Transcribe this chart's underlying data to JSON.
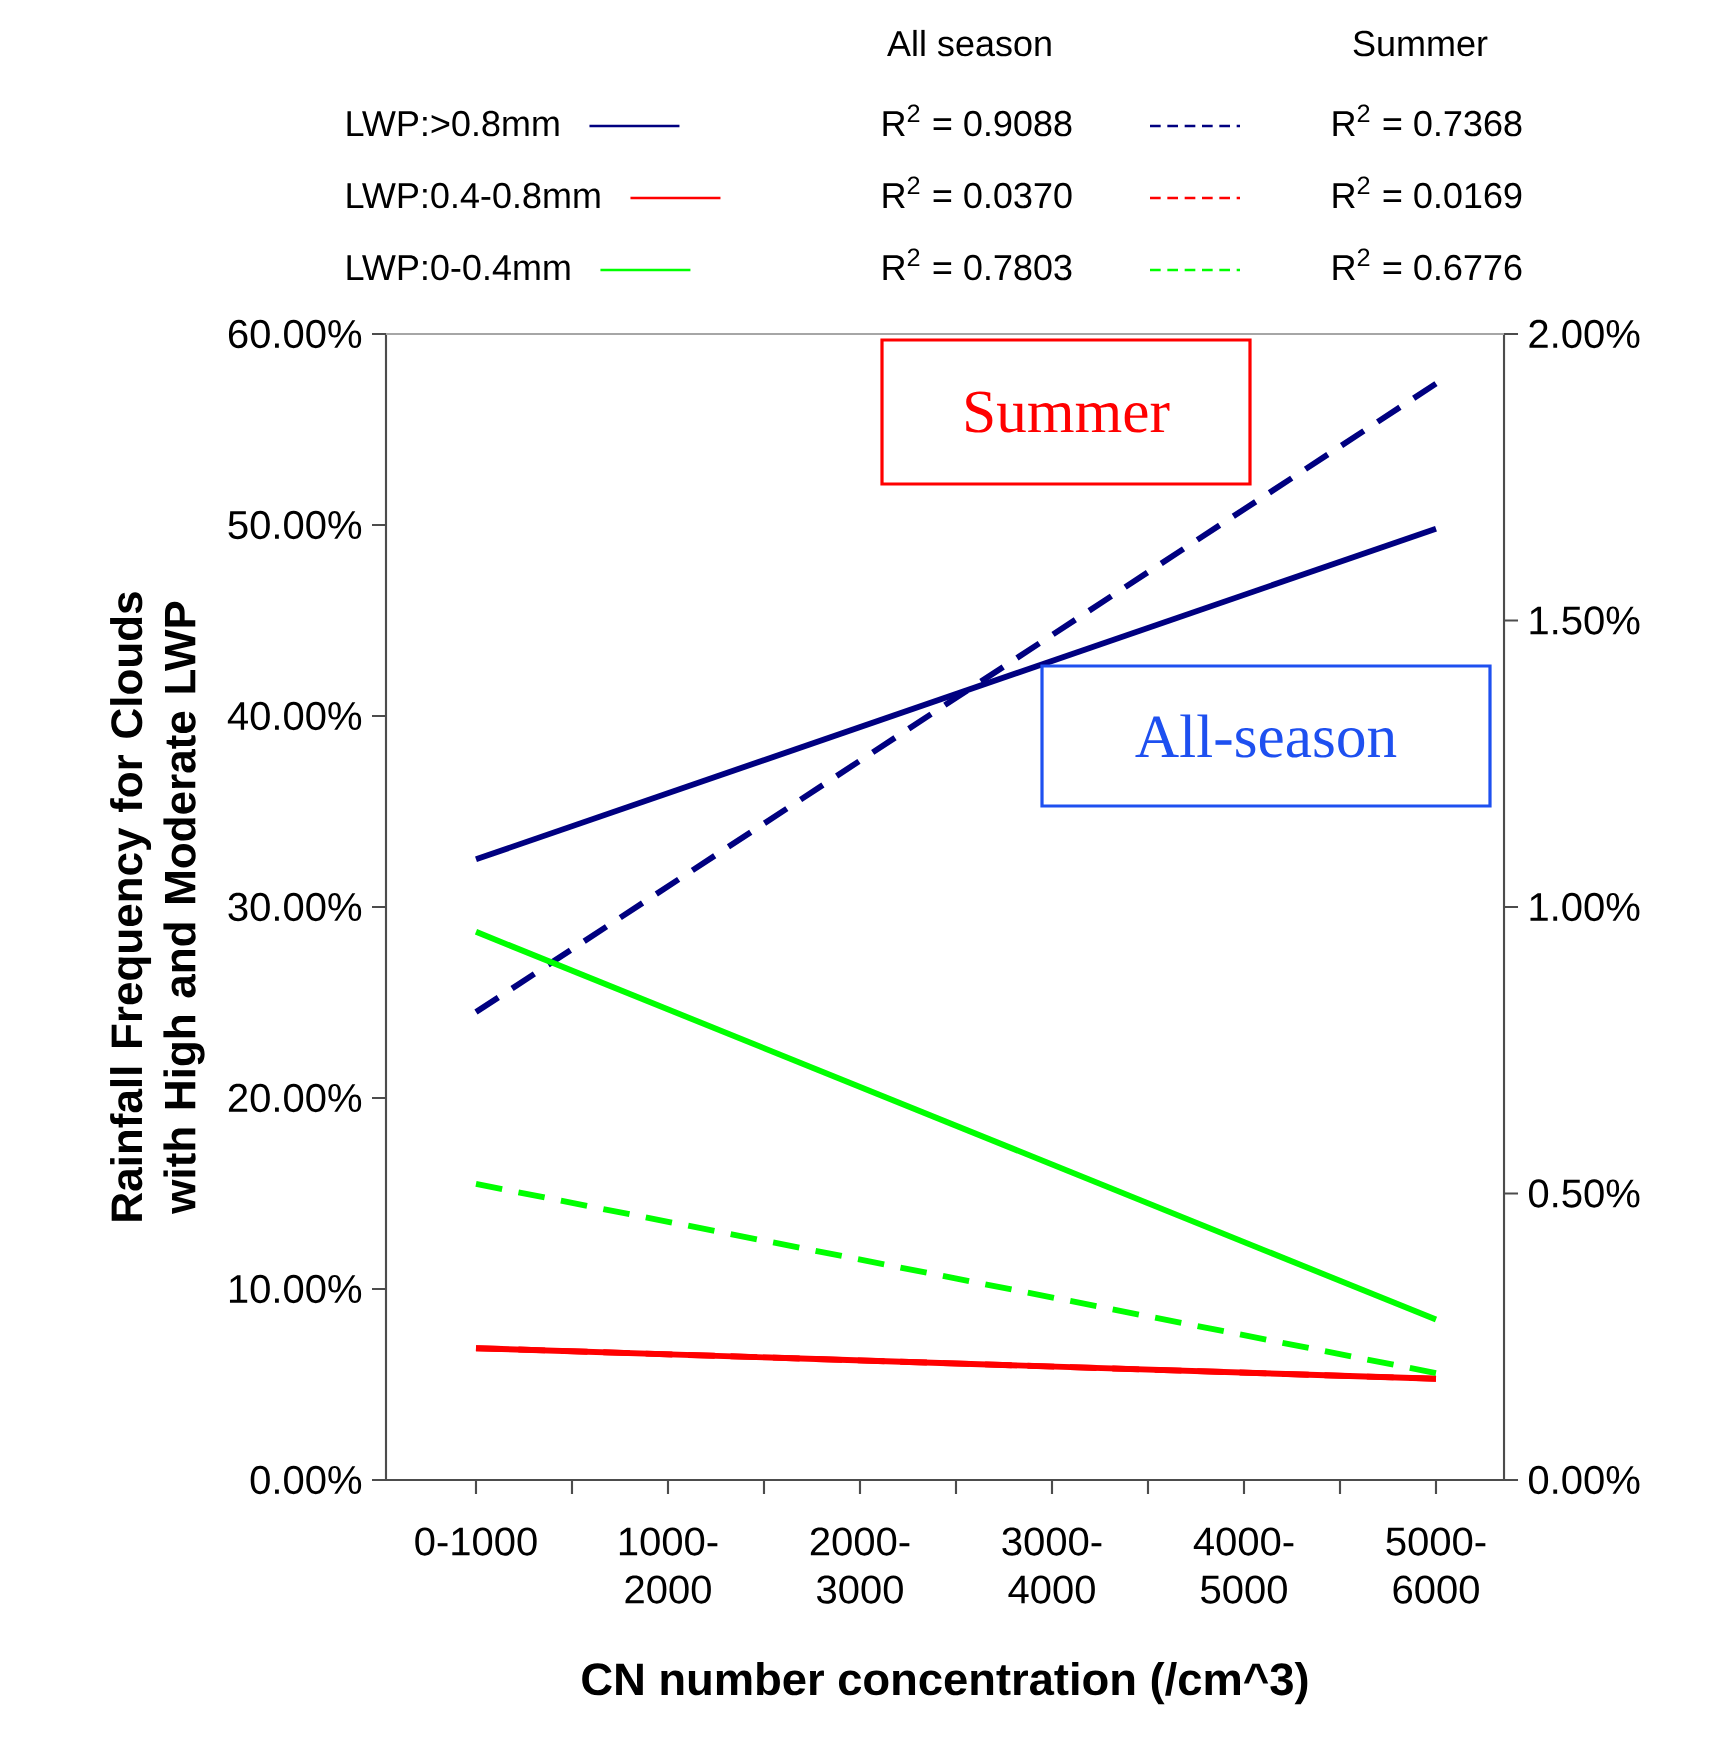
{
  "chart_data": {
    "type": "line",
    "ylabel": "Rainfall Frequency for Clouds with High and Moderate LWP",
    "xlabel": "CN number concentration (/cm^3)",
    "categories": [
      "0-1000",
      "1000-2000",
      "2000-3000",
      "3000-4000",
      "4000-5000",
      "5000-6000"
    ],
    "series": [
      {
        "name": "LWP:>0.8mm",
        "color": "#000080",
        "line_style": "solid",
        "values": [
          32.5,
          null,
          null,
          null,
          null,
          49.8
        ]
      },
      {
        "color": "#000080",
        "line_style": "dashed",
        "values": [
          24.5,
          null,
          null,
          null,
          null,
          57.4
        ]
      },
      {
        "name": "LWP:0.4-0.8mm",
        "color": "#ff0000",
        "line_style": "solid",
        "values": [
          6.9,
          null,
          null,
          null,
          null,
          5.3
        ]
      },
      {
        "color": "#ff0000",
        "line_style": "dashed",
        "values": [
          6.9,
          null,
          null,
          null,
          null,
          5.3
        ]
      },
      {
        "name": "LWP:0-0.4mm",
        "color": "#00ff00",
        "line_style": "solid",
        "values": [
          28.7,
          null,
          null,
          null,
          null,
          8.4
        ]
      },
      {
        "color": "#00ff00",
        "line_style": "dashed",
        "values": [
          15.5,
          null,
          null,
          null,
          null,
          5.6
        ]
      }
    ],
    "ylim": [
      0,
      60
    ],
    "yticks": [
      {
        "value": 0,
        "label": "0.00%"
      },
      {
        "value": 10,
        "label": "10.00%"
      },
      {
        "value": 20,
        "label": "20.00%"
      },
      {
        "value": 30,
        "label": "30.00%"
      },
      {
        "value": 40,
        "label": "40.00%"
      },
      {
        "value": 50,
        "label": "50.00%"
      },
      {
        "value": 60,
        "label": "60.00%"
      }
    ],
    "y2lim": [
      0,
      2
    ],
    "y2ticks": [
      {
        "value": 0,
        "label": "0.00%"
      },
      {
        "value": 0.5,
        "label": "0.50%"
      },
      {
        "value": 1,
        "label": "1.00%"
      },
      {
        "value": 1.5,
        "label": "1.50%"
      },
      {
        "value": 2,
        "label": "2.00%"
      }
    ],
    "legend": "top",
    "annotations": [
      "All season",
      "Summer",
      "R$^{2}$ = 0.9088",
      "R$^{2}$ = 0.7368",
      "R$^{2}$ = 0.0370",
      "R$^{2}$ = 0.0169",
      "R$^{2}$ = 0.7803",
      "R$^{2}$ = 0.6776",
      "Summer",
      "All-season"
    ]
  }
}
